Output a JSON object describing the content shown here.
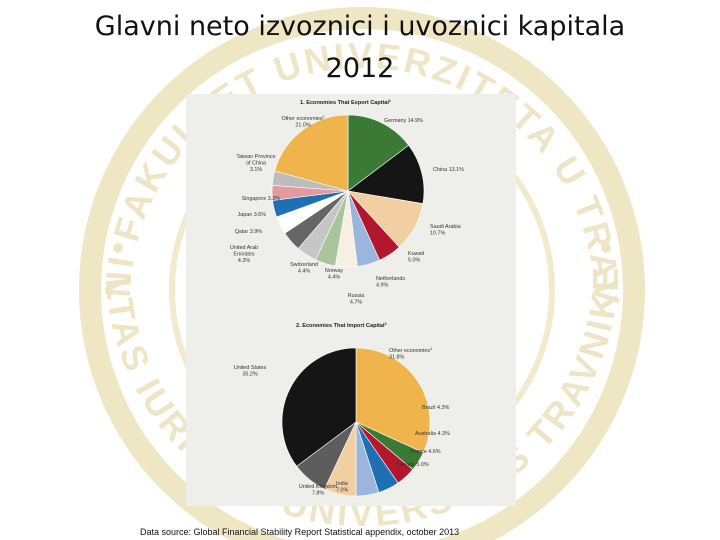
{
  "slide": {
    "title_line1": "Glavni neto izvoznici i uvoznici kapitala",
    "title_line2": "2012",
    "source": "Data source: Global Financial Stability Report Statistical appendix, october 2013"
  },
  "watermark": {
    "text_top": "PRAVNI FAKULTET UNIVERZITETA U TRAVNIKU",
    "text_bottom": "FACULTAS IURIDICA UNIVERSITAS TRAVNIKENSIS",
    "color": "#efe6c4"
  },
  "chart_data": [
    {
      "type": "pie",
      "title": "1. Economies That Export Capital",
      "title_sup": "1",
      "slices": [
        {
          "name": "Germany",
          "value_label": "14.9%",
          "value": 14.9,
          "color": "#3a7a35"
        },
        {
          "name": "China",
          "value_label": "13.1%",
          "value": 13.1,
          "color": "#151515"
        },
        {
          "name": "Saudi Arabia",
          "value_label": "10.7%",
          "value": 10.7,
          "color": "#f2cfa2"
        },
        {
          "name": "Kuwait",
          "value_label": "5.0%",
          "value": 5.0,
          "color": "#b3172d"
        },
        {
          "name": "Netherlands",
          "value_label": "4.9%",
          "value": 4.9,
          "color": "#9bb5dc"
        },
        {
          "name": "Russia",
          "value_label": "4.7%",
          "value": 4.7,
          "color": "#f6efe2"
        },
        {
          "name": "Norway",
          "value_label": "4.4%",
          "value": 4.4,
          "color": "#a8c59c"
        },
        {
          "name": "Switzerland",
          "value_label": "4.4%",
          "value": 4.4,
          "color": "#c6c6c6"
        },
        {
          "name": "United Arab Emirates",
          "value_label": "4.3%",
          "value": 4.3,
          "color": "#666666"
        },
        {
          "name": "Qatar",
          "value_label": "3.9%",
          "value": 3.9,
          "color": "#ffffff"
        },
        {
          "name": "Japan",
          "value_label": "3.6%",
          "value": 3.6,
          "color": "#1f6fb5"
        },
        {
          "name": "Singapore",
          "value_label": "3.2%",
          "value": 3.2,
          "color": "#e09aa0"
        },
        {
          "name": "Taiwan Province of China",
          "value_label": "3.1%",
          "value": 3.1,
          "color": "#bcbcbc"
        },
        {
          "name": "Other economies",
          "name_sup": "2",
          "value_label": "21.0%",
          "value": 21.0,
          "color": "#f0b44c"
        }
      ]
    },
    {
      "type": "pie",
      "title": "2. Economies That Import Capital",
      "title_sup": "3",
      "slices": [
        {
          "name": "Other economies",
          "name_sup": "4",
          "value_label": "31.8%",
          "value": 31.8,
          "color": "#f0b44c"
        },
        {
          "name": "Brazil",
          "value_label": "4.3%",
          "value": 4.3,
          "color": "#3a7a35"
        },
        {
          "name": "Australia",
          "value_label": "4.3%",
          "value": 4.3,
          "color": "#b3172d"
        },
        {
          "name": "France",
          "value_label": "4.6%",
          "value": 4.6,
          "color": "#1f6fb5"
        },
        {
          "name": "Canada",
          "value_label": "5.0%",
          "value": 5.0,
          "color": "#9bb5dc"
        },
        {
          "name": "India",
          "value_label": "7.0%",
          "value": 7.0,
          "color": "#f2cfa2"
        },
        {
          "name": "United Kingdom",
          "value_label": "7.8%",
          "value": 7.8,
          "color": "#5d5d5d"
        },
        {
          "name": "United States",
          "value_label": "35.2%",
          "value": 35.2,
          "color": "#151515"
        }
      ]
    }
  ]
}
